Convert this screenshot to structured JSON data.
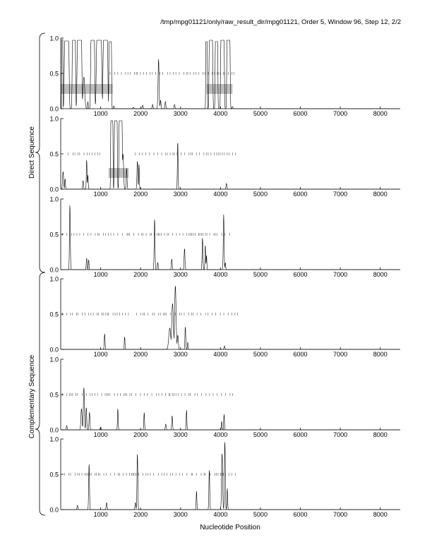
{
  "title": "/tmp/mpg01121/only/raw_result_dir/mpg01121, Order 5, Window 96, Step 12, 2/2",
  "xlabel": "Nucleotide Position",
  "group_labels": [
    "Direct Sequence",
    "Complementary Sequence"
  ],
  "chart_data": {
    "type": "line",
    "title": "/tmp/mpg01121/only/raw_result_dir/mpg01121, Order 5, Window 96, Step 12, 2/2",
    "xlabel": "Nucleotide Position",
    "xlim": [
      0,
      8500
    ],
    "ylim": [
      0,
      1
    ],
    "x_ticks": [
      "1000",
      "2000",
      "3000",
      "4000",
      "5000",
      "6000",
      "7000",
      "8000"
    ],
    "x_tick_values": [
      1000,
      2000,
      3000,
      4000,
      5000,
      6000,
      7000,
      8000
    ],
    "y_ticks": [
      "0.0",
      "0.5",
      "1.0"
    ],
    "y_tick_values": [
      0,
      0.5,
      1
    ],
    "grid": false,
    "panels": [
      {
        "group": "Direct Sequence",
        "peaks": [
          [
            40,
            0.98,
            20,
            1
          ],
          [
            150,
            0.96,
            70,
            1
          ],
          [
            330,
            0.97,
            50,
            1
          ],
          [
            470,
            0.97,
            70,
            1
          ],
          [
            580,
            0.45,
            30,
            0
          ],
          [
            680,
            0.1,
            12,
            0
          ],
          [
            800,
            0.97,
            60,
            1
          ],
          [
            960,
            0.97,
            80,
            1
          ],
          [
            1120,
            0.97,
            70,
            1
          ],
          [
            1240,
            0.95,
            40,
            1
          ],
          [
            1330,
            0.04,
            15,
            0
          ],
          [
            1820,
            0.02,
            20,
            0
          ],
          [
            2050,
            0.05,
            15,
            0
          ],
          [
            2300,
            0.06,
            15,
            0
          ],
          [
            2450,
            0.7,
            18,
            0
          ],
          [
            2500,
            0.12,
            15,
            0
          ],
          [
            2620,
            0.1,
            15,
            0
          ],
          [
            2850,
            0.06,
            15,
            0
          ],
          [
            3650,
            0.95,
            25,
            1
          ],
          [
            3760,
            0.97,
            55,
            1
          ],
          [
            3900,
            0.95,
            40,
            1
          ],
          [
            4050,
            0.97,
            55,
            1
          ],
          [
            4200,
            0.97,
            50,
            1
          ],
          [
            4300,
            0.03,
            15,
            0
          ]
        ],
        "bars": [
          [
            0,
            1300,
            0.28
          ],
          [
            3650,
            4300,
            0.28
          ]
        ],
        "tick_ranges": [
          [
            1200,
            4350
          ]
        ]
      },
      {
        "group": "Direct Sequence",
        "peaks": [
          [
            60,
            0.25,
            18,
            0
          ],
          [
            110,
            0.15,
            12,
            0
          ],
          [
            560,
            0.12,
            15,
            0
          ],
          [
            650,
            0.42,
            12,
            0
          ],
          [
            680,
            0.2,
            12,
            0
          ],
          [
            1280,
            0.97,
            35,
            1
          ],
          [
            1380,
            0.97,
            45,
            1
          ],
          [
            1500,
            0.97,
            50,
            1
          ],
          [
            1560,
            0.5,
            20,
            0
          ],
          [
            1650,
            0.3,
            15,
            0
          ],
          [
            1920,
            0.4,
            15,
            0
          ],
          [
            1960,
            0.35,
            12,
            0
          ],
          [
            2930,
            0.68,
            12,
            0
          ],
          [
            4150,
            0.08,
            15,
            0
          ]
        ],
        "bars": [
          [
            1200,
            1700,
            0.23
          ]
        ],
        "tick_ranges": [
          [
            150,
            1000
          ],
          [
            1800,
            4400
          ]
        ]
      },
      {
        "group": "Direct Sequence",
        "peaks": [
          [
            230,
            0.92,
            14,
            0
          ],
          [
            650,
            0.16,
            15,
            0
          ],
          [
            700,
            0.14,
            12,
            0
          ],
          [
            2350,
            0.72,
            14,
            0
          ],
          [
            2430,
            0.1,
            15,
            0
          ],
          [
            2780,
            0.15,
            15,
            0
          ],
          [
            3100,
            0.3,
            15,
            0
          ],
          [
            3550,
            0.45,
            14,
            0
          ],
          [
            3620,
            0.35,
            12,
            0
          ],
          [
            3650,
            0.2,
            12,
            0
          ],
          [
            4080,
            0.78,
            14,
            0
          ],
          [
            4120,
            0.1,
            12,
            0
          ]
        ],
        "bars": [],
        "tick_ranges": [
          [
            0,
            4300
          ]
        ]
      },
      {
        "group": "Complementary Sequence",
        "peaks": [
          [
            1100,
            0.22,
            14,
            0
          ],
          [
            1600,
            0.18,
            12,
            0
          ],
          [
            2730,
            0.3,
            35,
            0
          ],
          [
            2800,
            0.65,
            30,
            0
          ],
          [
            2870,
            0.9,
            25,
            0
          ],
          [
            2930,
            0.2,
            20,
            0
          ],
          [
            3120,
            0.32,
            14,
            0
          ],
          [
            3180,
            0.1,
            12,
            0
          ],
          [
            4100,
            0.05,
            15,
            0
          ]
        ],
        "bars": [],
        "tick_ranges": [
          [
            0,
            1700
          ],
          [
            1850,
            4450
          ]
        ]
      },
      {
        "group": "Complementary Sequence",
        "peaks": [
          [
            150,
            0.06,
            15,
            0
          ],
          [
            520,
            0.3,
            20,
            0
          ],
          [
            580,
            0.6,
            18,
            0
          ],
          [
            640,
            0.32,
            15,
            0
          ],
          [
            720,
            0.25,
            15,
            0
          ],
          [
            1000,
            0.04,
            15,
            0
          ],
          [
            1430,
            0.3,
            12,
            0
          ],
          [
            2090,
            0.25,
            12,
            0
          ],
          [
            2630,
            0.08,
            15,
            0
          ],
          [
            2790,
            0.2,
            14,
            0
          ],
          [
            3150,
            0.28,
            12,
            0
          ],
          [
            4030,
            0.12,
            12,
            0
          ],
          [
            4090,
            0.22,
            12,
            0
          ]
        ],
        "bars": [],
        "tick_ranges": [
          [
            0,
            4400
          ]
        ]
      },
      {
        "group": "Complementary Sequence",
        "peaks": [
          [
            420,
            0.06,
            15,
            0
          ],
          [
            710,
            0.65,
            14,
            0
          ],
          [
            1150,
            0.1,
            15,
            0
          ],
          [
            1870,
            0.1,
            15,
            0
          ],
          [
            1920,
            0.8,
            14,
            0
          ],
          [
            3400,
            0.26,
            12,
            0
          ],
          [
            3720,
            0.56,
            14,
            0
          ],
          [
            4040,
            0.8,
            18,
            0
          ],
          [
            4110,
            0.97,
            15,
            0
          ],
          [
            4170,
            0.3,
            12,
            0
          ]
        ],
        "bars": [],
        "tick_ranges": [
          [
            50,
            4400
          ]
        ]
      }
    ]
  }
}
